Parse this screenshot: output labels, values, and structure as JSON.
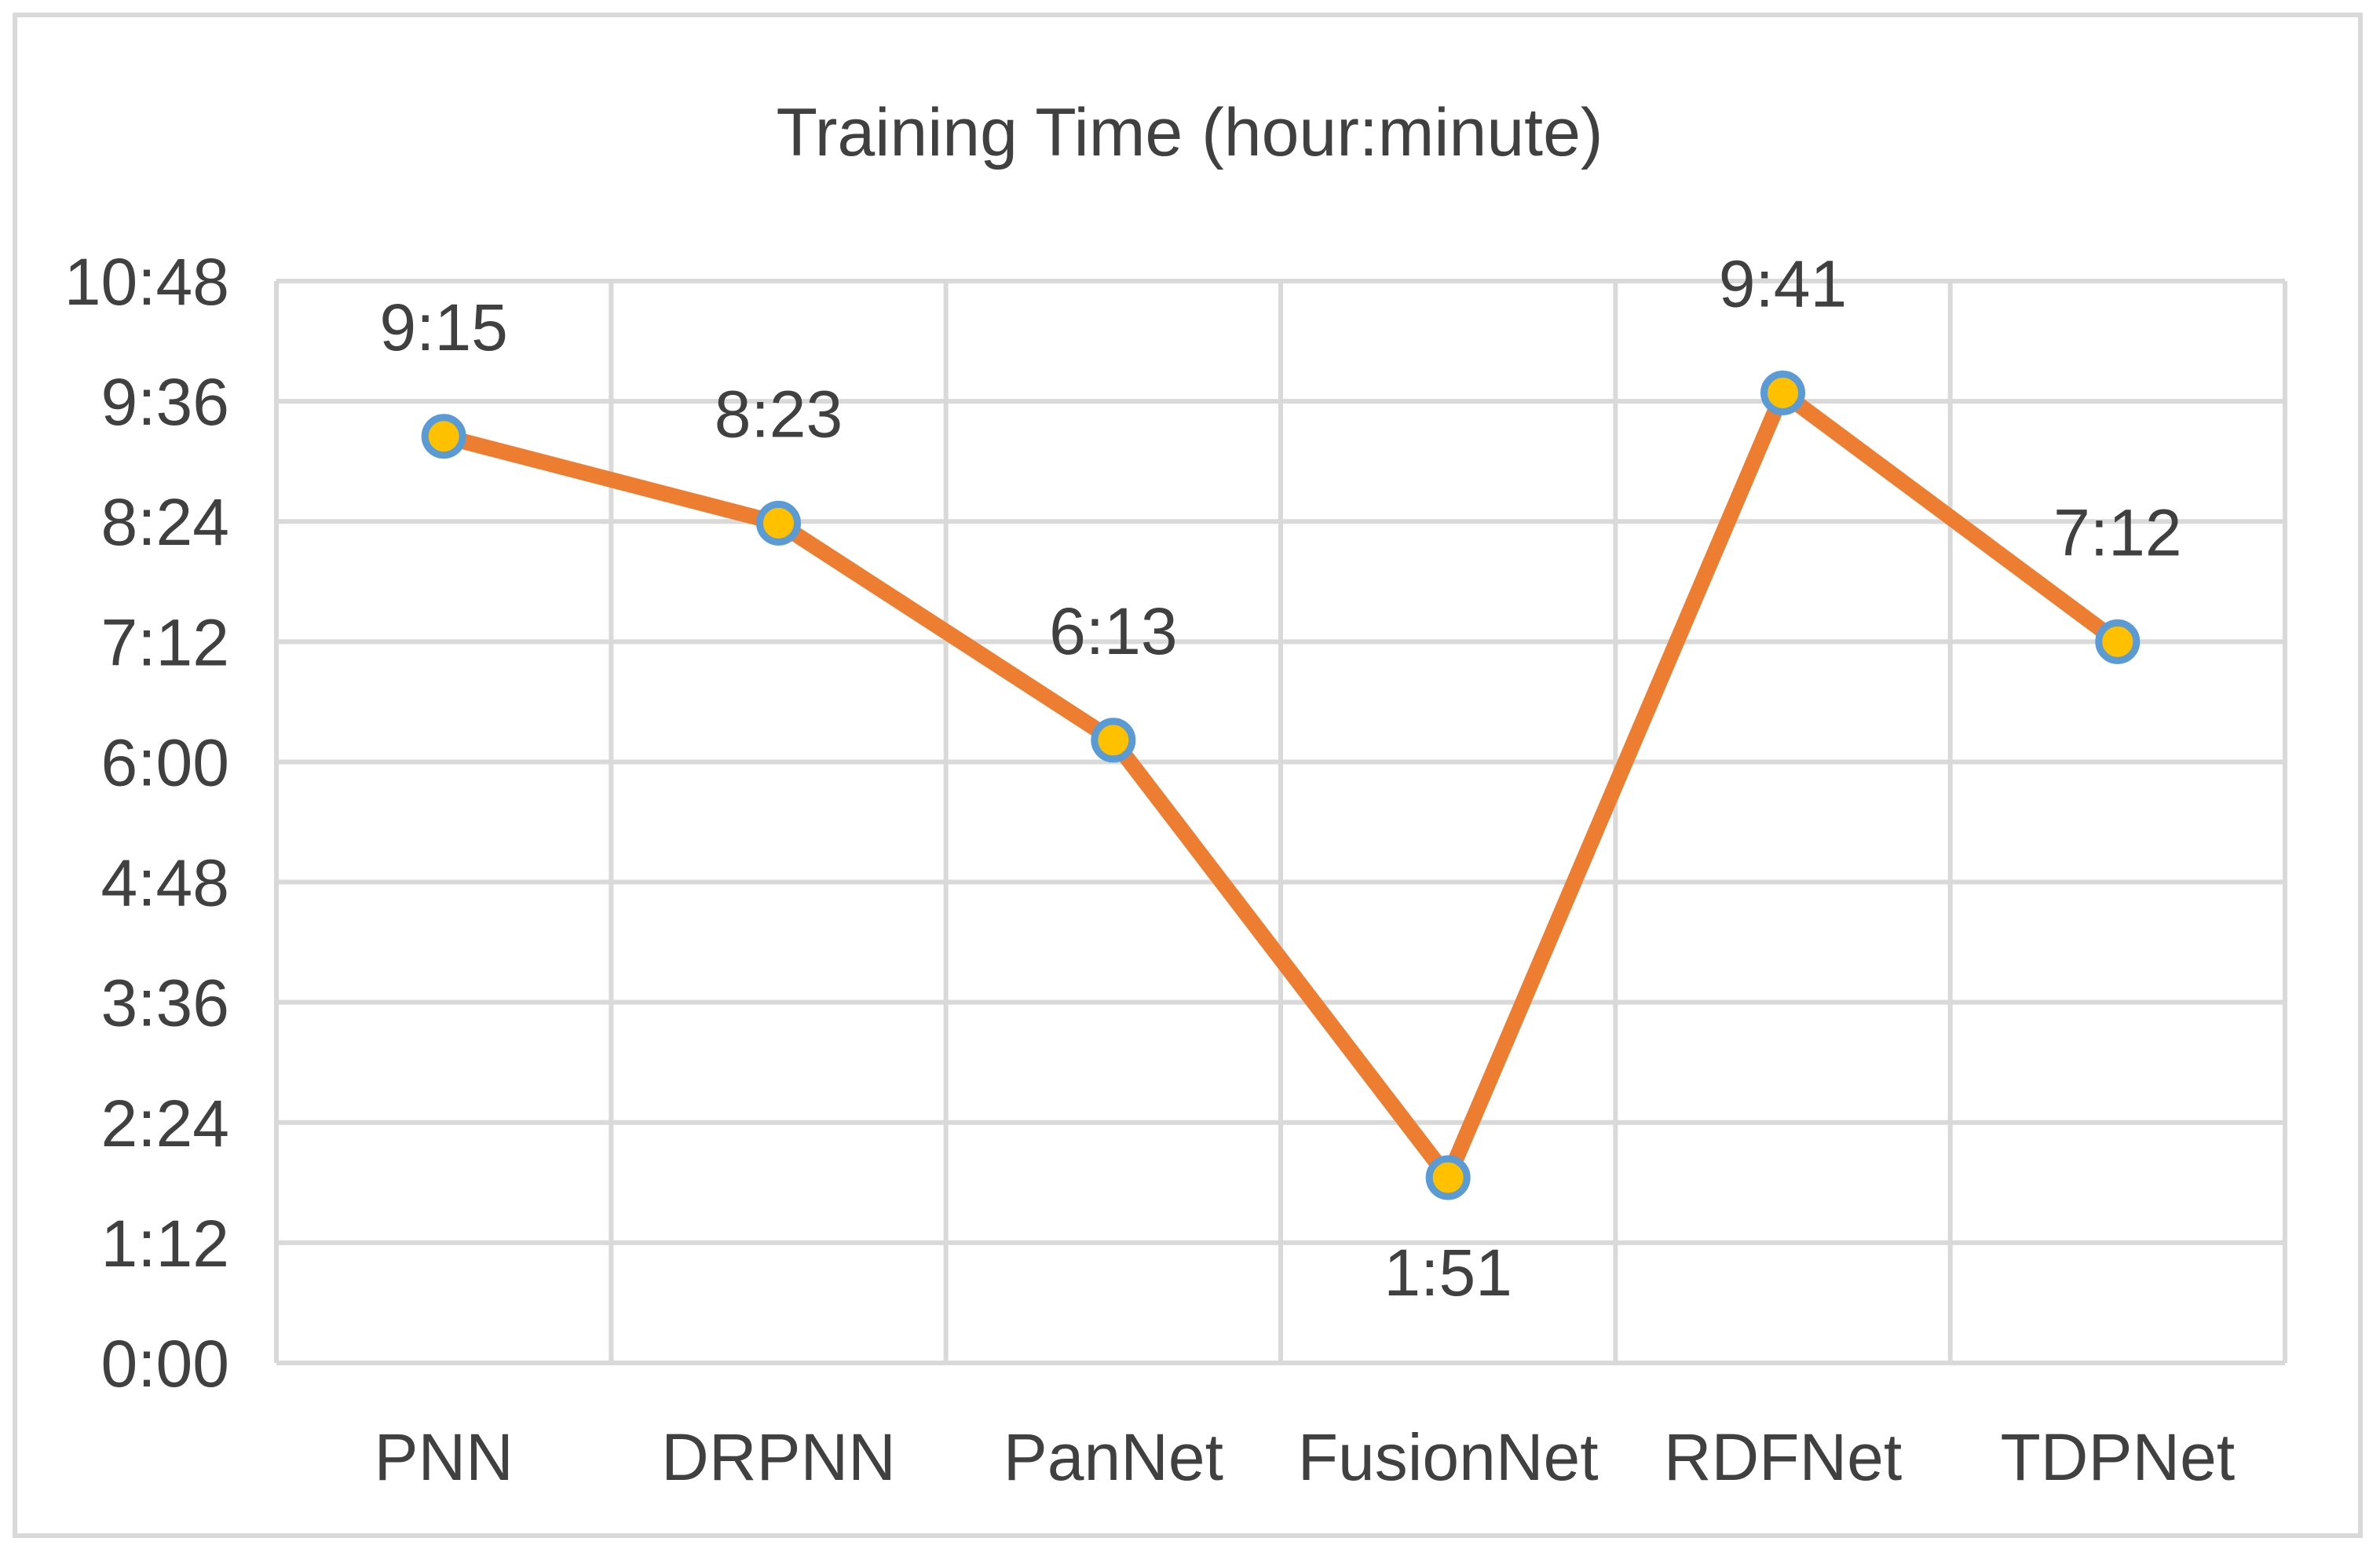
{
  "chart_data": {
    "type": "line",
    "title": "Training Time (hour:minute)",
    "xlabel": "",
    "ylabel": "",
    "categories": [
      "PNN",
      "DRPNN",
      "PanNet",
      "FusionNet",
      "RDFNet",
      "TDPNet"
    ],
    "series": [
      {
        "values": [
          "9:15",
          "8:23",
          "6:13",
          "1:51",
          "9:41",
          "7:12"
        ],
        "data_labels": [
          "9:15",
          "8:23",
          "6:13",
          "1:51",
          "9:41",
          "7:12"
        ]
      }
    ],
    "y_ticks": [
      "0:00",
      "1:12",
      "2:24",
      "3:36",
      "4:48",
      "6:00",
      "7:12",
      "8:24",
      "9:36",
      "10:48"
    ],
    "ylim": [
      "0:00",
      "10:48"
    ],
    "grid": true,
    "legend": "none",
    "colors": {
      "line": "#ed7d31",
      "marker_fill": "#ffc000",
      "marker_edge": "#5b9bd5",
      "grid": "#d9d9d9",
      "text": "#404040"
    }
  }
}
